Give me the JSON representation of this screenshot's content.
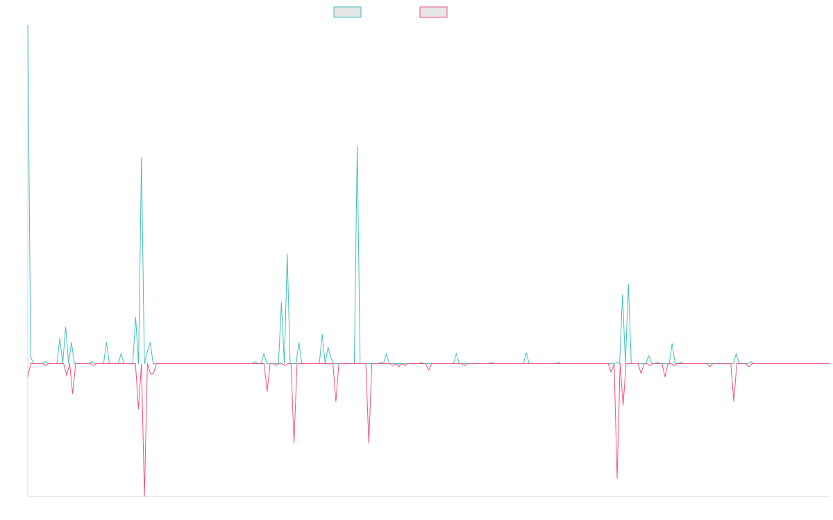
{
  "colors": {
    "series_a": "#3fbfb8",
    "series_b": "#f0517a",
    "axis": "#d9d9d9",
    "legend_fill": "#e6e6e6"
  },
  "legend": {
    "position": "top-center",
    "entries": [
      {
        "name": "",
        "color": "#3fbfb8"
      },
      {
        "name": "",
        "color": "#f0517a"
      }
    ]
  },
  "chart_data": {
    "type": "line",
    "title": "",
    "xlabel": "",
    "ylabel": "",
    "grid": false,
    "xlim": [
      0,
      202
    ],
    "ylim": [
      -200,
      510
    ],
    "x_start": 0,
    "series": [
      {
        "name": "",
        "color": "#3fbfb8",
        "values": [
          510,
          10,
          0,
          0,
          0,
          0,
          3,
          0,
          0,
          0,
          0,
          38,
          0,
          55,
          0,
          32,
          0,
          0,
          0,
          0,
          0,
          0,
          3,
          0,
          0,
          0,
          0,
          32,
          0,
          0,
          0,
          0,
          15,
          0,
          0,
          0,
          0,
          70,
          0,
          310,
          0,
          18,
          32,
          0,
          0,
          0,
          0,
          0,
          0,
          0,
          0,
          0,
          0,
          0,
          0,
          0,
          0,
          0,
          0,
          0,
          0,
          0,
          0,
          0,
          0,
          0,
          0,
          0,
          0,
          0,
          0,
          0,
          0,
          0,
          0,
          0,
          0,
          0,
          3,
          0,
          0,
          15,
          0,
          0,
          0,
          0,
          0,
          92,
          0,
          165,
          0,
          0,
          0,
          32,
          0,
          0,
          0,
          0,
          0,
          0,
          0,
          44,
          0,
          25,
          8,
          0,
          0,
          0,
          0,
          0,
          0,
          0,
          0,
          327,
          0,
          0,
          0,
          0,
          0,
          0,
          0,
          2,
          0,
          15,
          0,
          0,
          0,
          0,
          0,
          0,
          0,
          0,
          0,
          0,
          0,
          2,
          0,
          0,
          0,
          0,
          0,
          0,
          0,
          0,
          0,
          0,
          0,
          15,
          0,
          0,
          0,
          0,
          0,
          0,
          0,
          0,
          0,
          0,
          0,
          2,
          0,
          0,
          0,
          0,
          0,
          0,
          0,
          0,
          0,
          0,
          0,
          16,
          0,
          0,
          0,
          0,
          0,
          0,
          0,
          0,
          0,
          0,
          2,
          0,
          0,
          0,
          0,
          0,
          0,
          0,
          0,
          0,
          0,
          0,
          0,
          0,
          0,
          0,
          0,
          0,
          0,
          0,
          2,
          0,
          104,
          0,
          120,
          0,
          0,
          0,
          0,
          0,
          0,
          12,
          0,
          0,
          2,
          0,
          0,
          0,
          0,
          30,
          0,
          0,
          2,
          0,
          0,
          0,
          0,
          0,
          0,
          0,
          0,
          0,
          0,
          0,
          0,
          0,
          0,
          0,
          0,
          0,
          0,
          15,
          0,
          0,
          0,
          0,
          3,
          0,
          0,
          0,
          0,
          0,
          0,
          0,
          0,
          0,
          0,
          0,
          0,
          0,
          0,
          0,
          0,
          0,
          0,
          0,
          0,
          0,
          0,
          0,
          0,
          0,
          0,
          0
        ],
        "note_ignore": ""
      },
      {
        "name": "",
        "color": "#f0517a",
        "values": [
          -20,
          0,
          0,
          0,
          0,
          0,
          -3,
          0,
          0,
          0,
          0,
          0,
          0,
          -18,
          0,
          -45,
          0,
          0,
          0,
          0,
          0,
          0,
          -3,
          0,
          0,
          0,
          0,
          0,
          0,
          0,
          0,
          0,
          0,
          0,
          0,
          0,
          0,
          -68,
          0,
          -200,
          0,
          -15,
          -15,
          0,
          0,
          0,
          0,
          0,
          0,
          0,
          0,
          0,
          0,
          0,
          0,
          0,
          0,
          0,
          0,
          0,
          0,
          0,
          0,
          0,
          0,
          0,
          0,
          0,
          0,
          0,
          0,
          0,
          0,
          0,
          0,
          0,
          0,
          0,
          0,
          0,
          -42,
          0,
          0,
          -3,
          0,
          0,
          -3,
          0,
          0,
          -120,
          0,
          0,
          0,
          0,
          0,
          0,
          0,
          0,
          0,
          0,
          0,
          0,
          0,
          -57,
          0,
          0,
          0,
          0,
          0,
          0,
          0,
          0,
          0,
          0,
          -120,
          0,
          0,
          0,
          0,
          0,
          0,
          0,
          -3,
          0,
          -5,
          0,
          -3,
          0,
          0,
          0,
          0,
          0,
          0,
          0,
          -10,
          0,
          0,
          0,
          0,
          0,
          0,
          0,
          0,
          0,
          0,
          0,
          -3,
          0,
          0,
          0,
          0,
          0,
          0,
          0,
          0,
          0,
          0,
          0,
          0,
          0,
          0,
          0,
          0,
          0,
          0,
          0,
          0,
          0,
          0,
          0,
          0,
          0,
          0,
          0,
          0,
          0,
          0,
          0,
          0,
          0,
          0,
          0,
          0,
          0,
          0,
          0,
          0,
          0,
          0,
          0,
          0,
          0,
          0,
          0,
          0,
          -13,
          0,
          -173,
          0,
          -63,
          0,
          0,
          0,
          0,
          0,
          -15,
          0,
          0,
          -3,
          0,
          0,
          0,
          0,
          -20,
          0,
          0,
          -3,
          0,
          0,
          0,
          0,
          0,
          0,
          0,
          0,
          0,
          0,
          0,
          -5,
          0,
          0,
          0,
          0,
          0,
          0,
          0,
          -57,
          0,
          0,
          0,
          0,
          -5,
          0,
          0,
          0,
          0,
          0,
          0,
          0,
          0,
          0,
          0,
          0,
          0,
          0,
          0,
          0,
          0,
          0,
          0,
          0,
          0,
          0,
          0,
          0,
          0,
          0,
          0,
          0
        ]
      }
    ]
  }
}
